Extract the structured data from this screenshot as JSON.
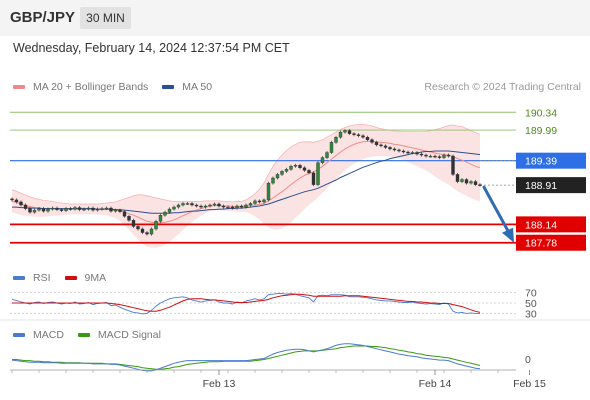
{
  "header": {
    "symbol": "GBP/JPY",
    "timeframe": "30 MIN"
  },
  "datetime": "Wednesday, February 14, 2024 12:37:54 PM CET",
  "legend": {
    "bollinger": {
      "label": "MA 20 + Bollinger Bands",
      "color": "#f08a8a"
    },
    "ma50": {
      "label": "MA 50",
      "color": "#2b4f8e"
    }
  },
  "credit": "Research © 2024 Trading Central",
  "rsi_legend": {
    "rsi": {
      "label": "RSI",
      "color": "#4a7bd0"
    },
    "ma": {
      "label": "9MA",
      "color": "#d01010"
    }
  },
  "macd_legend": {
    "macd": {
      "label": "MACD",
      "color": "#4a7bd0"
    },
    "signal": {
      "label": "MACD Signal",
      "color": "#3a9a10"
    }
  },
  "chart_data": {
    "type": "candlestick",
    "price_axis": {
      "min": 187.5,
      "max": 190.6
    },
    "levels": [
      {
        "value": 190.34,
        "label": "190.34",
        "style": "resistance",
        "color": "#8fbf6a"
      },
      {
        "value": 189.99,
        "label": "189.99",
        "style": "resistance",
        "color": "#8fbf6a"
      },
      {
        "value": 189.39,
        "label": "189.39",
        "style": "pivot",
        "color": "#2e6ee6"
      },
      {
        "value": 188.14,
        "label": "188.14",
        "style": "support",
        "color": "#e00000"
      },
      {
        "value": 187.78,
        "label": "187.78",
        "style": "support",
        "color": "#e00000"
      }
    ],
    "last_price": {
      "value": 188.91,
      "label": "188.91"
    },
    "close": [
      188.62,
      188.58,
      188.52,
      188.45,
      188.38,
      188.42,
      188.45,
      188.4,
      188.44,
      188.46,
      188.43,
      188.41,
      188.45,
      188.44,
      188.47,
      188.43,
      188.44,
      188.46,
      188.42,
      188.44,
      188.45,
      188.46,
      188.4,
      188.42,
      188.39,
      188.3,
      188.22,
      188.1,
      188.05,
      187.98,
      187.95,
      188.05,
      188.2,
      188.32,
      188.38,
      188.44,
      188.48,
      188.52,
      188.55,
      188.55,
      188.52,
      188.5,
      188.48,
      188.5,
      188.52,
      188.54,
      188.5,
      188.48,
      188.48,
      188.46,
      188.5,
      188.48,
      188.52,
      188.55,
      188.6,
      188.58,
      188.62,
      188.95,
      189.05,
      189.12,
      189.18,
      189.22,
      189.28,
      189.3,
      189.25,
      189.2,
      189.15,
      188.92,
      189.35,
      189.45,
      189.55,
      189.75,
      189.85,
      189.95,
      189.98,
      189.92,
      189.9,
      189.88,
      189.85,
      189.8,
      189.75,
      189.7,
      189.68,
      189.65,
      189.62,
      189.6,
      189.58,
      189.56,
      189.54,
      189.55,
      189.52,
      189.5,
      189.48,
      189.48,
      189.47,
      189.45,
      189.5,
      189.48,
      189.12,
      188.98,
      189.02,
      188.95,
      188.98,
      188.92,
      188.91
    ],
    "ma20": [
      188.6,
      188.57,
      188.54,
      188.51,
      188.49,
      188.47,
      188.46,
      188.45,
      188.45,
      188.45,
      188.44,
      188.44,
      188.44,
      188.44,
      188.44,
      188.44,
      188.44,
      188.44,
      188.44,
      188.44,
      188.44,
      188.44,
      188.43,
      188.42,
      188.41,
      188.38,
      188.35,
      188.32,
      188.28,
      188.24,
      188.2,
      188.18,
      188.17,
      188.17,
      188.18,
      188.2,
      188.23,
      188.27,
      188.31,
      188.35,
      188.39,
      188.42,
      188.45,
      188.48,
      188.5,
      188.51,
      188.51,
      188.5,
      188.5,
      188.49,
      188.49,
      188.49,
      188.5,
      188.51,
      188.52,
      188.53,
      188.55,
      188.6,
      188.66,
      188.72,
      188.78,
      188.85,
      188.92,
      188.99,
      189.05,
      189.1,
      189.14,
      189.17,
      189.22,
      189.28,
      189.35,
      189.42,
      189.49,
      189.56,
      189.62,
      189.67,
      189.71,
      189.74,
      189.76,
      189.77,
      189.77,
      189.76,
      189.75,
      189.74,
      189.73,
      189.71,
      189.7,
      189.68,
      189.66,
      189.64,
      189.62,
      189.6,
      189.58,
      189.56,
      189.54,
      189.52,
      189.51,
      189.5,
      189.47,
      189.43,
      189.4,
      189.36,
      189.32,
      189.28,
      189.25
    ],
    "ma50": [
      188.48,
      188.48,
      188.47,
      188.47,
      188.46,
      188.46,
      188.46,
      188.45,
      188.45,
      188.45,
      188.45,
      188.45,
      188.45,
      188.45,
      188.45,
      188.45,
      188.45,
      188.45,
      188.45,
      188.44,
      188.44,
      188.44,
      188.44,
      188.43,
      188.43,
      188.42,
      188.41,
      188.4,
      188.39,
      188.38,
      188.37,
      188.36,
      188.36,
      188.36,
      188.36,
      188.36,
      188.37,
      188.37,
      188.38,
      188.39,
      188.4,
      188.4,
      188.41,
      188.42,
      188.43,
      188.43,
      188.44,
      188.44,
      188.45,
      188.45,
      188.46,
      188.46,
      188.47,
      188.48,
      188.49,
      188.5,
      188.52,
      188.54,
      188.57,
      188.6,
      188.63,
      188.66,
      188.69,
      188.72,
      188.75,
      188.78,
      188.8,
      188.82,
      188.85,
      188.89,
      188.93,
      188.97,
      189.01,
      189.06,
      189.1,
      189.14,
      189.18,
      189.22,
      189.26,
      189.29,
      189.32,
      189.35,
      189.38,
      189.4,
      189.43,
      189.45,
      189.47,
      189.49,
      189.51,
      189.53,
      189.54,
      189.56,
      189.57,
      189.57,
      189.58,
      189.58,
      189.58,
      189.58,
      189.57,
      189.56,
      189.55,
      189.54,
      189.53,
      189.52,
      189.51
    ],
    "bb_width": [
      0.22,
      0.22,
      0.21,
      0.2,
      0.19,
      0.18,
      0.17,
      0.16,
      0.15,
      0.14,
      0.13,
      0.12,
      0.11,
      0.1,
      0.1,
      0.1,
      0.1,
      0.1,
      0.1,
      0.1,
      0.11,
      0.12,
      0.14,
      0.16,
      0.2,
      0.26,
      0.32,
      0.38,
      0.44,
      0.48,
      0.5,
      0.5,
      0.49,
      0.47,
      0.44,
      0.4,
      0.36,
      0.32,
      0.28,
      0.24,
      0.2,
      0.17,
      0.14,
      0.12,
      0.1,
      0.09,
      0.09,
      0.09,
      0.09,
      0.09,
      0.1,
      0.1,
      0.12,
      0.16,
      0.22,
      0.3,
      0.4,
      0.52,
      0.62,
      0.68,
      0.72,
      0.74,
      0.74,
      0.72,
      0.7,
      0.66,
      0.62,
      0.58,
      0.55,
      0.52,
      0.5,
      0.48,
      0.46,
      0.44,
      0.42,
      0.4,
      0.38,
      0.36,
      0.34,
      0.32,
      0.3,
      0.28,
      0.27,
      0.26,
      0.26,
      0.26,
      0.27,
      0.28,
      0.3,
      0.32,
      0.34,
      0.36,
      0.38,
      0.42,
      0.46,
      0.5,
      0.54,
      0.58,
      0.62,
      0.64,
      0.66,
      0.66,
      0.66,
      0.66,
      0.66
    ],
    "rsi_axis": {
      "min": 25,
      "max": 75,
      "ticks": [
        {
          "v": 70,
          "label": "70"
        },
        {
          "v": 50,
          "label": "50"
        },
        {
          "v": 30,
          "label": "30"
        }
      ]
    },
    "rsi": [
      57,
      55,
      52,
      50,
      48,
      51,
      52,
      49,
      51,
      52,
      50,
      48,
      50,
      49,
      52,
      48,
      49,
      51,
      47,
      49,
      50,
      51,
      45,
      46,
      42,
      38,
      35,
      32,
      31,
      29,
      30,
      36,
      44,
      50,
      54,
      58,
      60,
      61,
      62,
      60,
      56,
      54,
      52,
      54,
      55,
      56,
      52,
      50,
      50,
      48,
      52,
      50,
      54,
      56,
      58,
      56,
      58,
      66,
      67,
      68,
      68,
      67,
      68,
      67,
      64,
      62,
      60,
      52,
      64,
      65,
      64,
      66,
      66,
      66,
      65,
      62,
      62,
      62,
      61,
      60,
      58,
      56,
      55,
      54,
      54,
      53,
      52,
      51,
      51,
      52,
      50,
      49,
      48,
      49,
      48,
      47,
      50,
      48,
      34,
      31,
      32,
      30,
      31,
      30,
      30
    ],
    "rsi_ma": [
      50,
      50,
      50,
      50,
      50,
      50,
      50,
      50,
      50,
      50,
      50,
      50,
      50,
      50,
      50,
      50,
      50,
      50,
      50,
      50,
      50,
      50,
      49,
      48,
      47,
      45,
      43,
      41,
      39,
      37,
      35,
      34,
      34,
      36,
      39,
      42,
      46,
      50,
      54,
      57,
      58,
      58,
      58,
      57,
      56,
      56,
      55,
      54,
      53,
      52,
      51,
      51,
      51,
      52,
      53,
      54,
      55,
      57,
      60,
      62,
      64,
      65,
      66,
      67,
      67,
      66,
      65,
      63,
      63,
      63,
      63,
      63,
      63,
      63,
      64,
      64,
      64,
      64,
      63,
      62,
      61,
      60,
      59,
      58,
      57,
      56,
      55,
      54,
      53,
      53,
      52,
      52,
      51,
      50,
      50,
      49,
      49,
      49,
      47,
      45,
      43,
      40,
      37,
      34,
      32
    ],
    "macd_axis": {
      "min": -0.35,
      "max": 0.35,
      "ticks": [
        {
          "v": 0,
          "label": "0"
        }
      ]
    },
    "macd": [
      -0.02,
      -0.03,
      -0.04,
      -0.05,
      -0.06,
      -0.06,
      -0.06,
      -0.07,
      -0.07,
      -0.07,
      -0.07,
      -0.08,
      -0.08,
      -0.08,
      -0.08,
      -0.08,
      -0.08,
      -0.08,
      -0.09,
      -0.09,
      -0.09,
      -0.09,
      -0.1,
      -0.1,
      -0.11,
      -0.13,
      -0.15,
      -0.17,
      -0.19,
      -0.21,
      -0.22,
      -0.22,
      -0.2,
      -0.17,
      -0.14,
      -0.11,
      -0.08,
      -0.06,
      -0.04,
      -0.03,
      -0.03,
      -0.03,
      -0.03,
      -0.03,
      -0.03,
      -0.03,
      -0.03,
      -0.03,
      -0.03,
      -0.03,
      -0.03,
      -0.03,
      -0.03,
      -0.02,
      -0.01,
      0.0,
      0.01,
      0.05,
      0.09,
      0.12,
      0.14,
      0.16,
      0.17,
      0.18,
      0.18,
      0.17,
      0.15,
      0.13,
      0.15,
      0.17,
      0.19,
      0.22,
      0.25,
      0.27,
      0.28,
      0.28,
      0.27,
      0.26,
      0.25,
      0.23,
      0.21,
      0.19,
      0.17,
      0.15,
      0.13,
      0.11,
      0.09,
      0.08,
      0.06,
      0.05,
      0.04,
      0.02,
      0.01,
      0.0,
      -0.01,
      -0.02,
      -0.02,
      -0.03,
      -0.06,
      -0.09,
      -0.11,
      -0.13,
      -0.15,
      -0.17,
      -0.18
    ],
    "macd_signal": [
      -0.01,
      -0.01,
      -0.02,
      -0.03,
      -0.03,
      -0.04,
      -0.04,
      -0.05,
      -0.05,
      -0.06,
      -0.06,
      -0.06,
      -0.07,
      -0.07,
      -0.07,
      -0.07,
      -0.08,
      -0.08,
      -0.08,
      -0.08,
      -0.08,
      -0.09,
      -0.09,
      -0.09,
      -0.1,
      -0.11,
      -0.12,
      -0.13,
      -0.14,
      -0.16,
      -0.17,
      -0.18,
      -0.19,
      -0.19,
      -0.18,
      -0.17,
      -0.15,
      -0.14,
      -0.12,
      -0.1,
      -0.09,
      -0.08,
      -0.07,
      -0.06,
      -0.05,
      -0.05,
      -0.05,
      -0.04,
      -0.04,
      -0.04,
      -0.04,
      -0.04,
      -0.04,
      -0.04,
      -0.03,
      -0.02,
      -0.01,
      0.01,
      0.03,
      0.05,
      0.07,
      0.09,
      0.11,
      0.13,
      0.14,
      0.15,
      0.15,
      0.15,
      0.15,
      0.16,
      0.17,
      0.18,
      0.19,
      0.21,
      0.22,
      0.23,
      0.24,
      0.24,
      0.24,
      0.24,
      0.23,
      0.23,
      0.22,
      0.21,
      0.19,
      0.18,
      0.16,
      0.15,
      0.13,
      0.12,
      0.1,
      0.09,
      0.07,
      0.06,
      0.05,
      0.04,
      0.03,
      0.02,
      0.0,
      -0.02,
      -0.04,
      -0.06,
      -0.08,
      -0.1,
      -0.12
    ],
    "x_ticks": [
      {
        "index": 46,
        "label": "Feb 13"
      },
      {
        "index": 94,
        "label": "Feb 14"
      },
      {
        "index": 115,
        "label": "Feb 15"
      }
    ],
    "forecast_arrow": {
      "from": 188.91,
      "to": 187.78
    }
  }
}
